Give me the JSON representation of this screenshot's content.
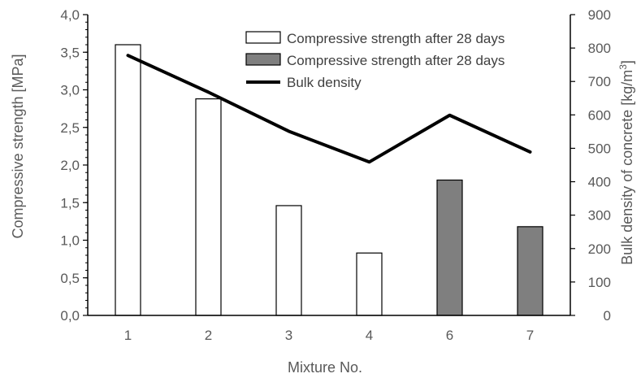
{
  "chart_data": {
    "type": "bar",
    "categories": [
      "1",
      "2",
      "3",
      "4",
      "6",
      "7"
    ],
    "series": [
      {
        "name": "Compressive strength after 28 days",
        "kind": "bar",
        "axis": "left",
        "fill": "#ffffff",
        "values": [
          3.6,
          2.88,
          1.46,
          0.83,
          null,
          null
        ]
      },
      {
        "name": "Compressive strength after 28 days",
        "kind": "bar",
        "axis": "left",
        "fill": "#7f7f7f",
        "values": [
          null,
          null,
          null,
          null,
          1.8,
          1.18
        ]
      },
      {
        "name": "Bulk density",
        "kind": "line",
        "axis": "right",
        "color": "#000000",
        "values": [
          778,
          668,
          551,
          459,
          599,
          489
        ]
      }
    ],
    "xlabel": "Mixture No.",
    "ylabel": "Compressive strength [MPa]",
    "y2label": "Bulk density of concrete [kg/m³]",
    "ylim": [
      0,
      4
    ],
    "y2lim": [
      0,
      900
    ],
    "yticks": [
      "0,0",
      "0,5",
      "1,0",
      "1,5",
      "2,0",
      "2,5",
      "3,0",
      "3,5",
      "4,0"
    ],
    "y2ticks": [
      "0",
      "100",
      "200",
      "300",
      "400",
      "500",
      "600",
      "700",
      "800",
      "900"
    ],
    "grid": false,
    "legend": "top-right"
  }
}
